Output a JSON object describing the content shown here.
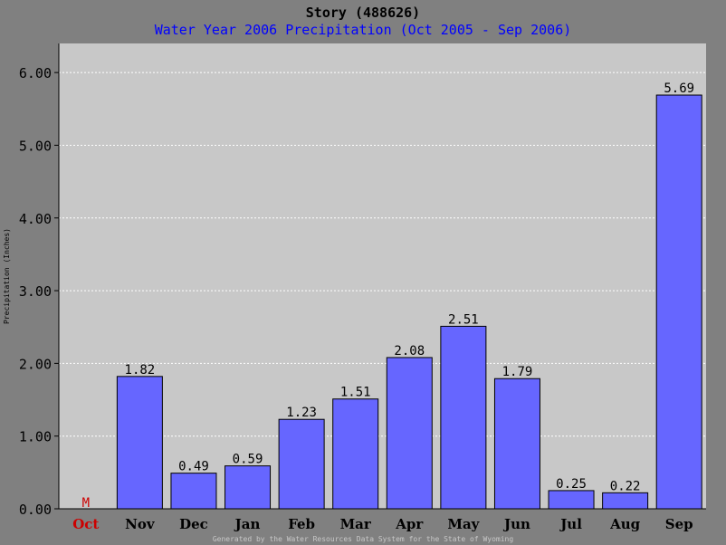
{
  "header": {
    "title": "Story (488626)",
    "subtitle": "Water Year 2006 Precipitation (Oct 2005 - Sep 2006)"
  },
  "footer": {
    "text": "Generated by the Water Resources Data System for the State of Wyoming"
  },
  "colors": {
    "background": "#808080",
    "plot_bg": "#c8c8c8",
    "bar_fill": "#6666ff",
    "missing": "#cc0000",
    "subtitle": "#0000ff"
  },
  "chart_data": {
    "type": "bar",
    "title": "Story (488626)",
    "subtitle": "Water Year 2006 Precipitation (Oct 2005 - Sep 2006)",
    "xlabel": "",
    "ylabel": "Precipitation (Inches)",
    "ylim": [
      0,
      6.4
    ],
    "yticks": [
      "0.00",
      "1.00",
      "2.00",
      "3.00",
      "4.00",
      "5.00",
      "6.00"
    ],
    "grid": true,
    "categories": [
      "Oct",
      "Nov",
      "Dec",
      "Jan",
      "Feb",
      "Mar",
      "Apr",
      "May",
      "Jun",
      "Jul",
      "Aug",
      "Sep"
    ],
    "values": [
      null,
      1.82,
      0.49,
      0.59,
      1.23,
      1.51,
      2.08,
      2.51,
      1.79,
      0.25,
      0.22,
      5.69
    ],
    "labels": [
      "M",
      "1.82",
      "0.49",
      "0.59",
      "1.23",
      "1.51",
      "2.08",
      "2.51",
      "1.79",
      "0.25",
      "0.22",
      "5.69"
    ],
    "missing_categories": [
      "Oct"
    ]
  }
}
